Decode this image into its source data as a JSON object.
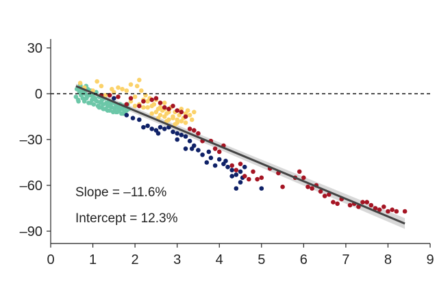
{
  "chart_data": {
    "type": "scatter",
    "title": "",
    "xlabel": "",
    "ylabel": "",
    "xlim": [
      0,
      9
    ],
    "ylim": [
      -95,
      38
    ],
    "x_ticks": [
      0,
      1,
      2,
      3,
      4,
      5,
      6,
      7,
      8,
      9
    ],
    "y_ticks": [
      30,
      0,
      -30,
      -60,
      -90
    ],
    "y_tick_labels": [
      "30",
      "0",
      "–30",
      "–60",
      "–90"
    ],
    "grid": false,
    "legend": "none",
    "reference_line": {
      "y": 0,
      "style": "dashed",
      "color": "#111111"
    },
    "fit_line": {
      "x": [
        0.6,
        8.4
      ],
      "y": [
        5,
        -85
      ],
      "color": "#444444",
      "band_color": "#b8b8b8",
      "band_halfwidth_start": 1.5,
      "band_halfwidth_end": 3.5
    },
    "annotations": {
      "slope": "Slope = –11.6%",
      "intercept": "Intercept = 12.3%"
    },
    "series": [
      {
        "color": "#6cc7a8",
        "points": [
          [
            0.6,
            -2
          ],
          [
            0.62,
            3
          ],
          [
            0.65,
            -4
          ],
          [
            0.68,
            1
          ],
          [
            0.7,
            6
          ],
          [
            0.72,
            -1
          ],
          [
            0.74,
            4
          ],
          [
            0.76,
            -3
          ],
          [
            0.78,
            2
          ],
          [
            0.8,
            -5
          ],
          [
            0.82,
            0
          ],
          [
            0.84,
            5
          ],
          [
            0.86,
            -2
          ],
          [
            0.88,
            3
          ],
          [
            0.9,
            -6
          ],
          [
            0.92,
            -1
          ],
          [
            0.95,
            2
          ],
          [
            0.98,
            -4
          ],
          [
            1.0,
            0
          ],
          [
            1.02,
            -7
          ],
          [
            1.05,
            -3
          ],
          [
            1.08,
            1
          ],
          [
            1.1,
            -5
          ],
          [
            1.12,
            -8
          ],
          [
            1.15,
            -2
          ],
          [
            1.18,
            -6
          ],
          [
            1.2,
            -9
          ],
          [
            1.22,
            -4
          ],
          [
            1.25,
            -7
          ],
          [
            1.28,
            -3
          ],
          [
            1.3,
            -10
          ],
          [
            1.32,
            -6
          ],
          [
            1.35,
            -8
          ],
          [
            1.38,
            -5
          ],
          [
            1.4,
            -11
          ],
          [
            1.42,
            -7
          ],
          [
            1.45,
            -9
          ],
          [
            1.48,
            -12
          ],
          [
            1.5,
            -6
          ],
          [
            1.52,
            -10
          ],
          [
            1.55,
            -8
          ],
          [
            1.58,
            -12
          ],
          [
            1.6,
            -9
          ],
          [
            1.62,
            -11
          ],
          [
            1.65,
            -7
          ],
          [
            1.68,
            -13
          ],
          [
            1.7,
            -10
          ],
          [
            1.72,
            -8
          ],
          [
            1.75,
            -12
          ],
          [
            1.78,
            -9
          ],
          [
            1.8,
            -11
          ],
          [
            1.82,
            -7
          ],
          [
            1.85,
            -10
          ],
          [
            0.66,
            -5
          ],
          [
            0.7,
            2
          ],
          [
            0.75,
            0
          ],
          [
            0.85,
            -3
          ],
          [
            0.95,
            -6
          ],
          [
            1.06,
            -4
          ],
          [
            1.15,
            -9
          ],
          [
            1.25,
            -10
          ],
          [
            1.35,
            -11
          ],
          [
            1.45,
            -6
          ],
          [
            1.55,
            -12
          ],
          [
            1.65,
            -10
          ],
          [
            1.72,
            -13
          ],
          [
            0.8,
            3
          ],
          [
            1.0,
            -2
          ],
          [
            1.2,
            -5
          ],
          [
            1.4,
            -8
          ]
        ]
      },
      {
        "color": "#fbd26a",
        "points": [
          [
            0.7,
            7
          ],
          [
            0.8,
            4
          ],
          [
            1.0,
            2
          ],
          [
            1.1,
            8
          ],
          [
            1.2,
            5
          ],
          [
            1.3,
            -1
          ],
          [
            1.45,
            3
          ],
          [
            1.5,
            1
          ],
          [
            1.6,
            4
          ],
          [
            1.7,
            3
          ],
          [
            1.8,
            2
          ],
          [
            1.9,
            6
          ],
          [
            2.0,
            -2
          ],
          [
            2.05,
            5
          ],
          [
            2.1,
            9
          ],
          [
            2.2,
            -4
          ],
          [
            2.3,
            -5
          ],
          [
            2.35,
            -3
          ],
          [
            2.4,
            -8
          ],
          [
            2.45,
            -7
          ],
          [
            2.5,
            -4
          ],
          [
            2.55,
            -10
          ],
          [
            2.6,
            -9
          ],
          [
            2.65,
            -11
          ],
          [
            2.7,
            -6
          ],
          [
            2.75,
            -13
          ],
          [
            2.8,
            -12
          ],
          [
            2.85,
            -9
          ],
          [
            2.9,
            -15
          ],
          [
            2.95,
            -12
          ],
          [
            3.0,
            -17
          ],
          [
            3.05,
            -14
          ],
          [
            3.1,
            -10
          ],
          [
            3.15,
            -16
          ],
          [
            3.2,
            -13
          ],
          [
            3.25,
            -11
          ],
          [
            3.3,
            -14
          ],
          [
            3.4,
            -12
          ],
          [
            2.3,
            -9
          ],
          [
            2.5,
            -12
          ],
          [
            2.6,
            -14
          ],
          [
            2.7,
            -15
          ],
          [
            2.8,
            -17
          ],
          [
            2.9,
            -16
          ],
          [
            3.0,
            -19
          ],
          [
            3.1,
            -18
          ],
          [
            2.15,
            2
          ],
          [
            2.25,
            -1
          ],
          [
            2.7,
            -10
          ],
          [
            2.6,
            -6
          ],
          [
            2.4,
            -13
          ],
          [
            2.55,
            -16
          ],
          [
            2.75,
            -18
          ],
          [
            2.95,
            -20
          ],
          [
            3.2,
            -19
          ],
          [
            3.35,
            -17
          ],
          [
            1.9,
            -5
          ],
          [
            2.0,
            -8
          ],
          [
            2.1,
            -7
          ],
          [
            2.2,
            -9
          ]
        ]
      },
      {
        "color": "#0f2167",
        "points": [
          [
            1.5,
            -3
          ],
          [
            1.8,
            -14
          ],
          [
            1.95,
            -16
          ],
          [
            2.1,
            -17
          ],
          [
            2.2,
            -22
          ],
          [
            2.3,
            -21
          ],
          [
            2.4,
            -23
          ],
          [
            2.5,
            -24
          ],
          [
            2.55,
            -26
          ],
          [
            2.6,
            -22
          ],
          [
            2.7,
            -23
          ],
          [
            2.8,
            -22
          ],
          [
            2.9,
            -25
          ],
          [
            3.0,
            -26
          ],
          [
            3.1,
            -27
          ],
          [
            3.2,
            -28
          ],
          [
            3.3,
            -31
          ],
          [
            3.35,
            -36
          ],
          [
            3.4,
            -34
          ],
          [
            3.5,
            -37
          ],
          [
            3.6,
            -40
          ],
          [
            3.7,
            -45
          ],
          [
            3.75,
            -38
          ],
          [
            3.8,
            -42
          ],
          [
            3.9,
            -47
          ],
          [
            4.0,
            -43
          ],
          [
            4.1,
            -46
          ],
          [
            4.15,
            -44
          ],
          [
            4.2,
            -48
          ],
          [
            4.3,
            -50
          ],
          [
            4.4,
            -53
          ],
          [
            4.5,
            -51
          ],
          [
            4.55,
            -55
          ],
          [
            4.6,
            -48
          ],
          [
            5.0,
            -62
          ],
          [
            4.4,
            -62
          ],
          [
            4.5,
            -58
          ],
          [
            4.3,
            -54
          ],
          [
            3.2,
            -36
          ],
          [
            3.0,
            -30
          ]
        ]
      },
      {
        "color": "#a51423",
        "points": [
          [
            1.2,
            -1
          ],
          [
            1.4,
            -1
          ],
          [
            1.6,
            -2
          ],
          [
            1.8,
            -7
          ],
          [
            1.9,
            -3
          ],
          [
            2.1,
            -8
          ],
          [
            2.2,
            -5
          ],
          [
            2.4,
            -4
          ],
          [
            2.5,
            -3
          ],
          [
            2.6,
            -6
          ],
          [
            2.7,
            -9
          ],
          [
            2.8,
            -10
          ],
          [
            2.9,
            -8
          ],
          [
            3.0,
            -11
          ],
          [
            3.1,
            -12
          ],
          [
            3.2,
            -15
          ],
          [
            3.3,
            -23
          ],
          [
            3.4,
            -24
          ],
          [
            3.5,
            -26
          ],
          [
            3.6,
            -31
          ],
          [
            3.8,
            -31
          ],
          [
            3.9,
            -36
          ],
          [
            4.0,
            -38
          ],
          [
            4.1,
            -34
          ],
          [
            4.3,
            -47
          ],
          [
            4.4,
            -50
          ],
          [
            4.5,
            -46
          ],
          [
            4.6,
            -54
          ],
          [
            4.7,
            -56
          ],
          [
            4.8,
            -51
          ],
          [
            4.9,
            -56
          ],
          [
            5.0,
            -55
          ],
          [
            5.2,
            -49
          ],
          [
            5.4,
            -52
          ],
          [
            5.5,
            -61
          ],
          [
            5.8,
            -55
          ],
          [
            5.9,
            -51
          ],
          [
            6.0,
            -55
          ],
          [
            6.1,
            -61
          ],
          [
            6.2,
            -62
          ],
          [
            6.3,
            -60
          ],
          [
            6.4,
            -64
          ],
          [
            6.5,
            -67
          ],
          [
            6.6,
            -66
          ],
          [
            6.7,
            -71
          ],
          [
            6.8,
            -72
          ],
          [
            6.9,
            -69
          ],
          [
            7.1,
            -73
          ],
          [
            7.2,
            -72
          ],
          [
            7.3,
            -74
          ],
          [
            7.4,
            -71
          ],
          [
            7.5,
            -71
          ],
          [
            7.6,
            -73
          ],
          [
            7.7,
            -75
          ],
          [
            7.8,
            -76
          ],
          [
            7.9,
            -74
          ],
          [
            8.0,
            -77
          ],
          [
            8.1,
            -76
          ],
          [
            8.2,
            -77
          ],
          [
            8.4,
            -77
          ]
        ]
      }
    ]
  }
}
